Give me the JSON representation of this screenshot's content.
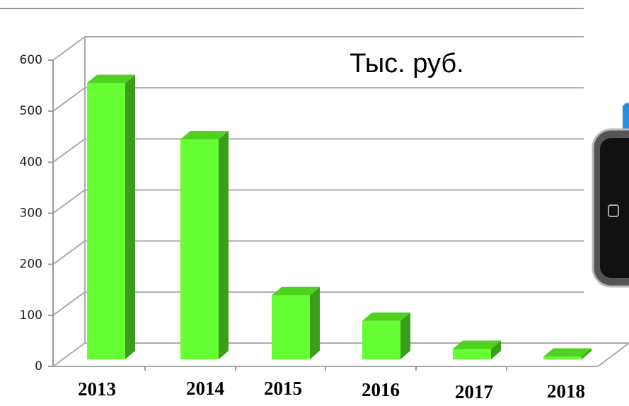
{
  "chart_data": {
    "type": "bar3d",
    "annotation": "Тыс. руб.",
    "categories": [
      "2013",
      "2014",
      "2015",
      "2016",
      "2017",
      "2018"
    ],
    "values": [
      540,
      430,
      125,
      75,
      20,
      5
    ],
    "color": "#66ff33",
    "ylim": [
      0,
      600
    ],
    "yticks": [
      0,
      100,
      200,
      300,
      400,
      500,
      600
    ],
    "grid": true
  }
}
